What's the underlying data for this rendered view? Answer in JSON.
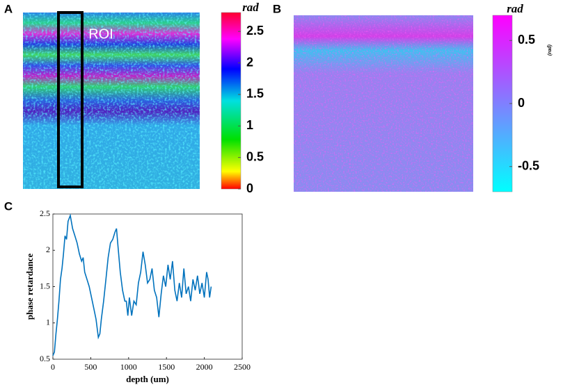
{
  "chart_data": [
    {
      "type": "image",
      "panel_label": "A",
      "annotation": "ROI",
      "colorbar": {
        "title": "rad",
        "colormap": "jet",
        "clim": [
          0,
          2.8
        ],
        "ticks": [
          0,
          0.5,
          1,
          1.5,
          2,
          2.5
        ]
      }
    },
    {
      "type": "image",
      "panel_label": "B",
      "colorbar": {
        "title": "rad",
        "unit_label": "(rad)",
        "colormap": "cool",
        "clim": [
          -0.7,
          0.7
        ],
        "ticks": [
          -0.5,
          0,
          0.5
        ]
      }
    },
    {
      "type": "line",
      "panel_label": "C",
      "xlabel": "depth (um)",
      "ylabel": "phase retardance",
      "color": "#0072bd",
      "xlim": [
        0,
        2500
      ],
      "xticks": [
        0,
        500,
        1000,
        1500,
        2000,
        2500
      ],
      "ylim": [
        0.5,
        2.5
      ],
      "yticks": [
        0.5,
        1,
        1.5,
        2,
        2.5
      ],
      "x": [
        0,
        20,
        40,
        60,
        80,
        100,
        120,
        140,
        160,
        180,
        200,
        230,
        260,
        290,
        320,
        350,
        380,
        400,
        420,
        450,
        480,
        510,
        540,
        570,
        600,
        620,
        640,
        670,
        700,
        730,
        760,
        790,
        820,
        840,
        860,
        890,
        920,
        950,
        970,
        990,
        1010,
        1040,
        1070,
        1100,
        1130,
        1160,
        1190,
        1220,
        1250,
        1280,
        1310,
        1340,
        1370,
        1400,
        1430,
        1460,
        1490,
        1520,
        1550,
        1580,
        1610,
        1640,
        1670,
        1700,
        1730,
        1760,
        1790,
        1820,
        1850,
        1880,
        1910,
        1940,
        1970,
        2000,
        2030,
        2050,
        2070,
        2090
      ],
      "values": [
        0.55,
        0.6,
        0.85,
        1.05,
        1.3,
        1.6,
        1.75,
        1.95,
        2.2,
        2.15,
        2.4,
        2.48,
        2.3,
        2.2,
        2.1,
        1.95,
        1.85,
        1.9,
        1.7,
        1.6,
        1.5,
        1.35,
        1.2,
        1.05,
        0.8,
        0.85,
        1.05,
        1.3,
        1.6,
        1.9,
        2.1,
        2.15,
        2.25,
        2.3,
        2.05,
        1.7,
        1.45,
        1.3,
        1.3,
        1.1,
        1.35,
        1.1,
        1.3,
        1.25,
        1.55,
        1.7,
        1.98,
        1.8,
        1.55,
        1.6,
        1.75,
        1.45,
        1.35,
        1.08,
        1.4,
        1.65,
        1.5,
        1.8,
        1.6,
        1.85,
        1.45,
        1.3,
        1.55,
        1.35,
        1.75,
        1.4,
        1.5,
        1.3,
        1.6,
        1.45,
        1.65,
        1.4,
        1.55,
        1.35,
        1.7,
        1.6,
        1.35,
        1.5
      ]
    }
  ]
}
